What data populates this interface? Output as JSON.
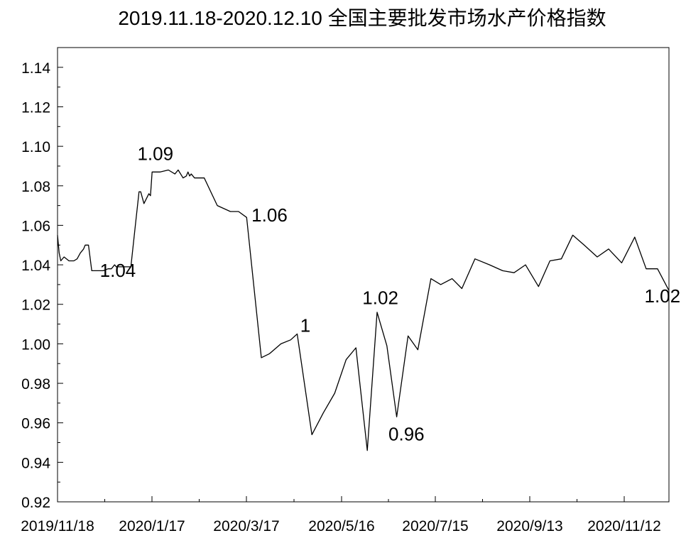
{
  "chart_data": {
    "type": "line",
    "title": "2019.11.18-2020.12.10 全国主要批发市场水产价格指数",
    "xlabel": "",
    "ylabel": "",
    "ylim": [
      0.92,
      1.15
    ],
    "grid": false,
    "yticks": [
      "0.92",
      "0.94",
      "0.96",
      "0.98",
      "1.00",
      "1.02",
      "1.04",
      "1.06",
      "1.08",
      "1.10",
      "1.12",
      "1.14"
    ],
    "xticks": [
      "2019/11/18",
      "2020/1/17",
      "2020/3/17",
      "2020/5/16",
      "2020/7/15",
      "2020/9/13",
      "2020/11/12"
    ],
    "series": [
      {
        "values": [
          [
            "2019-11-18",
            1.055
          ],
          [
            "2019-11-19",
            1.046
          ],
          [
            "2019-11-20",
            1.042
          ],
          [
            "2019-11-22",
            1.044
          ],
          [
            "2019-11-25",
            1.042
          ],
          [
            "2019-11-28",
            1.042
          ],
          [
            "2019-11-30",
            1.043
          ],
          [
            "2019-12-02",
            1.046
          ],
          [
            "2019-12-04",
            1.048
          ],
          [
            "2019-12-05",
            1.05
          ],
          [
            "2019-12-07",
            1.05
          ],
          [
            "2019-12-09",
            1.037
          ],
          [
            "2019-12-11",
            1.037
          ],
          [
            "2019-12-13",
            1.037
          ],
          [
            "2019-12-16",
            1.037
          ],
          [
            "2019-12-19",
            1.038
          ],
          [
            "2019-12-21",
            1.038
          ],
          [
            "2019-12-23",
            1.04
          ],
          [
            "2019-12-24",
            1.039
          ],
          [
            "2019-12-27",
            1.039
          ],
          [
            "2020-01-02",
            1.039
          ],
          [
            "2020-01-05",
            1.062
          ],
          [
            "2020-01-07",
            1.077
          ],
          [
            "2020-01-08",
            1.077
          ],
          [
            "2020-01-10",
            1.071
          ],
          [
            "2020-01-13",
            1.076
          ],
          [
            "2020-01-14",
            1.075
          ],
          [
            "2020-01-15",
            1.087
          ],
          [
            "2020-01-20",
            1.087
          ],
          [
            "2020-01-25",
            1.088
          ],
          [
            "2020-01-29",
            1.086
          ],
          [
            "2020-01-31",
            1.088
          ],
          [
            "2020-02-03",
            1.084
          ],
          [
            "2020-02-05",
            1.085
          ],
          [
            "2020-02-06",
            1.087
          ],
          [
            "2020-02-07",
            1.085
          ],
          [
            "2020-02-08",
            1.086
          ],
          [
            "2020-02-10",
            1.084
          ],
          [
            "2020-02-16",
            1.084
          ],
          [
            "2020-02-24",
            1.07
          ],
          [
            "2020-03-03",
            1.067
          ],
          [
            "2020-03-08",
            1.067
          ],
          [
            "2020-03-13",
            1.064
          ],
          [
            "2020-03-22",
            0.993
          ],
          [
            "2020-03-27",
            0.995
          ],
          [
            "2020-04-03",
            1.0
          ],
          [
            "2020-04-09",
            1.002
          ],
          [
            "2020-04-13",
            1.005
          ],
          [
            "2020-04-22",
            0.954
          ],
          [
            "2020-04-29",
            0.965
          ],
          [
            "2020-05-06",
            0.975
          ],
          [
            "2020-05-13",
            0.992
          ],
          [
            "2020-05-19",
            0.998
          ],
          [
            "2020-05-26",
            0.946
          ],
          [
            "2020-06-01",
            1.016
          ],
          [
            "2020-06-07",
            0.999
          ],
          [
            "2020-06-13",
            0.963
          ],
          [
            "2020-06-20",
            1.004
          ],
          [
            "2020-06-26",
            0.997
          ],
          [
            "2020-07-04",
            1.033
          ],
          [
            "2020-07-10",
            1.03
          ],
          [
            "2020-07-17",
            1.033
          ],
          [
            "2020-07-23",
            1.028
          ],
          [
            "2020-07-31",
            1.043
          ],
          [
            "2020-08-09",
            1.04
          ],
          [
            "2020-08-17",
            1.037
          ],
          [
            "2020-08-24",
            1.036
          ],
          [
            "2020-08-31",
            1.04
          ],
          [
            "2020-09-08",
            1.029
          ],
          [
            "2020-09-15",
            1.042
          ],
          [
            "2020-09-22",
            1.043
          ],
          [
            "2020-09-29",
            1.055
          ],
          [
            "2020-10-06",
            1.05
          ],
          [
            "2020-10-14",
            1.044
          ],
          [
            "2020-10-21",
            1.048
          ],
          [
            "2020-10-29",
            1.041
          ],
          [
            "2020-11-06",
            1.054
          ],
          [
            "2020-11-13",
            1.038
          ],
          [
            "2020-11-20",
            1.038
          ],
          [
            "2020-11-27",
            1.027
          ]
        ]
      }
    ],
    "annotations": [
      {
        "text": "1.04",
        "x": "2019-12-25",
        "y": 1.034
      },
      {
        "text": "1.09",
        "x": "2020-01-17",
        "y": 1.093
      },
      {
        "text": "1.06",
        "x": "2020-03-27",
        "y": 1.062
      },
      {
        "text": "1",
        "x": "2020-04-18",
        "y": 1.006
      },
      {
        "text": "1.02",
        "x": "2020-06-03",
        "y": 1.02
      },
      {
        "text": "0.96",
        "x": "2020-06-19",
        "y": 0.951
      },
      {
        "text": "1.02",
        "x": "2020-11-23",
        "y": 1.021
      }
    ]
  }
}
